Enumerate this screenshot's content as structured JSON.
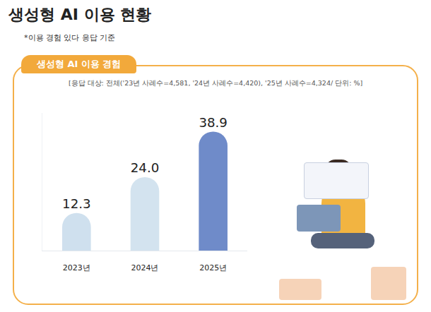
{
  "chart_data": {
    "type": "bar",
    "title": "생성형 AI 이용 현황",
    "subtitle": "*이용 경험 있다 응답 기준",
    "annotations": [
      "생성형 AI 이용 경험",
      "[응답 대상: 전체('23년 사례수=4,581, '24년 사례수=4,420), '25년 사례수=4,324/ 단위: %]"
    ],
    "categories": [
      "2023년",
      "2024년",
      "2025년"
    ],
    "values": [
      12.3,
      24.0,
      38.9
    ],
    "value_labels": [
      "12.3",
      "24.0",
      "38.9"
    ],
    "colors": [
      "#cfe0ee",
      "#d3e3ef",
      "#6f8bc9"
    ],
    "ylim": [
      0,
      45
    ],
    "grid": false,
    "data_labels": true,
    "tick_labels": "x"
  }
}
